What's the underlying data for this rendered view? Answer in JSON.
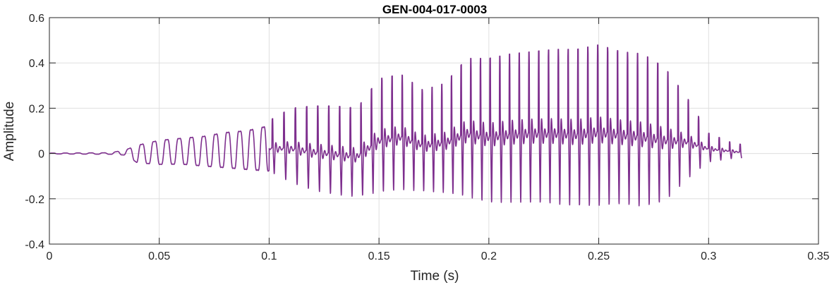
{
  "chart_data": {
    "type": "line",
    "title": "GEN-004-017-0003",
    "xlabel": "Time (s)",
    "ylabel": "Amplitude",
    "xlim": [
      0,
      0.35
    ],
    "ylim": [
      -0.4,
      0.6
    ],
    "xticks": [
      0,
      0.05,
      0.1,
      0.15,
      0.2,
      0.25,
      0.3,
      0.35
    ],
    "xtick_labels": [
      "0",
      "0.05",
      "0.1",
      "0.15",
      "0.2",
      "0.25",
      "0.3",
      "0.35"
    ],
    "yticks": [
      -0.4,
      -0.2,
      0,
      0.2,
      0.4,
      0.6
    ],
    "ytick_labels": [
      "-0.4",
      "-0.2",
      "0",
      "0.2",
      "0.4",
      "0.6"
    ],
    "grid": true,
    "line_color": "#7E2F8E",
    "signal_start_s": 0.0,
    "signal_end_s": 0.315,
    "envelope": {
      "t": [
        0.0,
        0.028,
        0.035,
        0.04,
        0.05,
        0.06,
        0.07,
        0.08,
        0.09,
        0.1,
        0.11,
        0.12,
        0.13,
        0.14,
        0.15,
        0.16,
        0.17,
        0.18,
        0.19,
        0.2,
        0.21,
        0.22,
        0.23,
        0.24,
        0.25,
        0.26,
        0.27,
        0.28,
        0.29,
        0.3,
        0.31,
        0.315
      ],
      "max": [
        0.002,
        0.004,
        0.02,
        0.045,
        0.07,
        0.08,
        0.09,
        0.11,
        0.12,
        0.145,
        0.2,
        0.21,
        0.21,
        0.2,
        0.33,
        0.35,
        0.28,
        0.31,
        0.42,
        0.42,
        0.44,
        0.45,
        0.46,
        0.46,
        0.48,
        0.45,
        0.44,
        0.38,
        0.25,
        0.09,
        0.05,
        0.04
      ],
      "min": [
        -0.002,
        -0.004,
        -0.01,
        -0.05,
        -0.06,
        -0.06,
        -0.07,
        -0.08,
        -0.09,
        -0.1,
        -0.16,
        -0.2,
        -0.22,
        -0.23,
        -0.22,
        -0.21,
        -0.21,
        -0.22,
        -0.25,
        -0.28,
        -0.28,
        -0.28,
        -0.29,
        -0.3,
        -0.3,
        -0.29,
        -0.3,
        -0.27,
        -0.15,
        -0.05,
        -0.03,
        -0.03
      ]
    },
    "pitch_period_s": {
      "t": [
        0.035,
        0.1,
        0.15,
        0.18,
        0.2,
        0.25,
        0.3,
        0.315
      ],
      "period": [
        0.0058,
        0.0053,
        0.0047,
        0.0044,
        0.0044,
        0.0045,
        0.0047,
        0.0048
      ]
    }
  }
}
